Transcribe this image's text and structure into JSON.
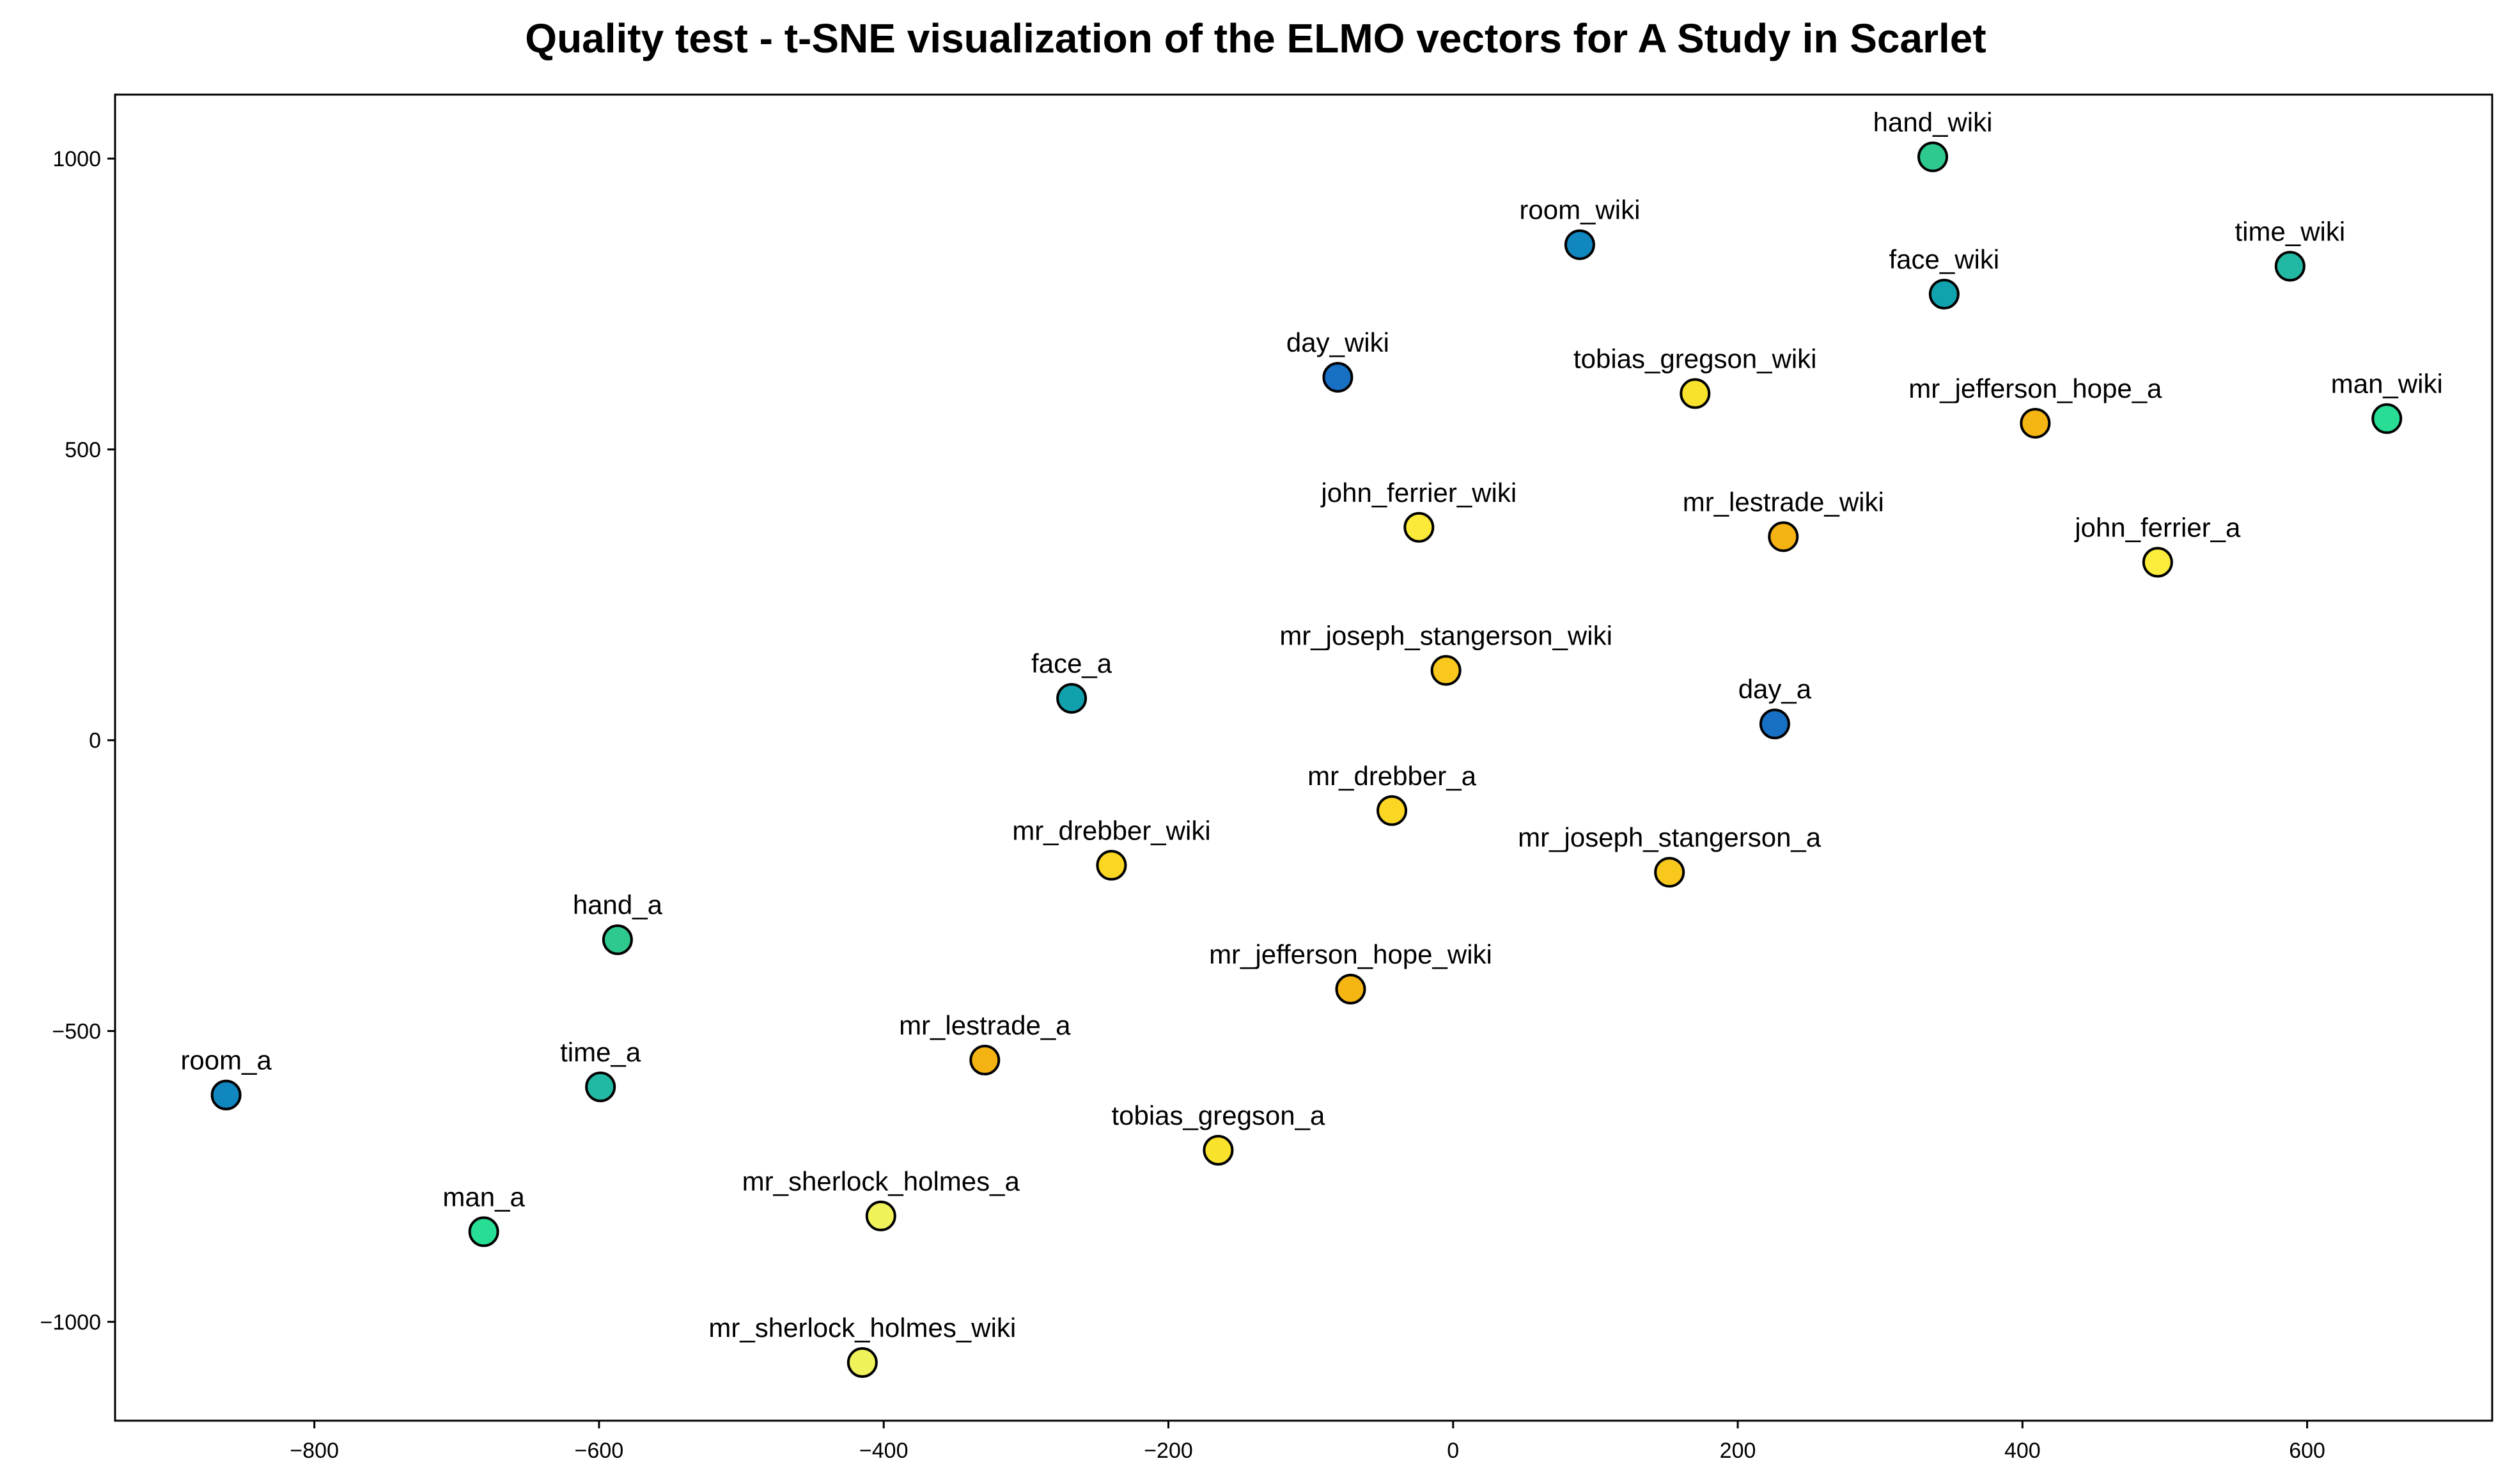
{
  "chart_data": {
    "type": "scatter",
    "title": "Quality test - t-SNE visualization of the ELMO vectors for A Study in Scarlet",
    "xlabel": "",
    "ylabel": "",
    "xlim": [
      -940,
      730
    ],
    "ylim": [
      -1170,
      1110
    ],
    "xticks": [
      -800,
      -600,
      -400,
      -200,
      0,
      200,
      400,
      600
    ],
    "yticks": [
      -1000,
      -500,
      0,
      500,
      1000
    ],
    "grid": false,
    "points": [
      {
        "label": "hand_wiki",
        "x": 337,
        "y": 1003,
        "color": "#2ec98e"
      },
      {
        "label": "room_wiki",
        "x": 89,
        "y": 852,
        "color": "#1187bf"
      },
      {
        "label": "time_wiki",
        "x": 588,
        "y": 815,
        "color": "#22b9a4"
      },
      {
        "label": "face_wiki",
        "x": 345,
        "y": 767,
        "color": "#11a3ad"
      },
      {
        "label": "day_wiki",
        "x": -81,
        "y": 624,
        "color": "#1770c4"
      },
      {
        "label": "tobias_gregson_wiki",
        "x": 170,
        "y": 596,
        "color": "#f9e22b"
      },
      {
        "label": "mr_jefferson_hope_a",
        "x": 409,
        "y": 545,
        "color": "#f5b513"
      },
      {
        "label": "man_wiki",
        "x": 656,
        "y": 553,
        "color": "#27de94"
      },
      {
        "label": "john_ferrier_wiki",
        "x": -24,
        "y": 366,
        "color": "#fbea3a"
      },
      {
        "label": "mr_lestrade_wiki",
        "x": 232,
        "y": 350,
        "color": "#f5b313"
      },
      {
        "label": "john_ferrier_a",
        "x": 495,
        "y": 306,
        "color": "#fcec3c"
      },
      {
        "label": "mr_joseph_stangerson_wiki",
        "x": -5,
        "y": 120,
        "color": "#f8c81c"
      },
      {
        "label": "face_a",
        "x": -268,
        "y": 72,
        "color": "#11a1ad"
      },
      {
        "label": "day_a",
        "x": 226,
        "y": 28,
        "color": "#1770c4"
      },
      {
        "label": "mr_drebber_a",
        "x": -43,
        "y": -121,
        "color": "#fbd723"
      },
      {
        "label": "mr_drebber_wiki",
        "x": -240,
        "y": -215,
        "color": "#fbd723"
      },
      {
        "label": "mr_joseph_stangerson_a",
        "x": 152,
        "y": -227,
        "color": "#f8c81c"
      },
      {
        "label": "hand_a",
        "x": -587,
        "y": -343,
        "color": "#2ec98e"
      },
      {
        "label": "mr_jefferson_hope_wiki",
        "x": -72,
        "y": -428,
        "color": "#f5b513"
      },
      {
        "label": "mr_lestrade_a",
        "x": -329,
        "y": -550,
        "color": "#f5b313"
      },
      {
        "label": "room_a",
        "x": -862,
        "y": -610,
        "color": "#1187bf"
      },
      {
        "label": "time_a",
        "x": -599,
        "y": -596,
        "color": "#22b9a4"
      },
      {
        "label": "tobias_gregson_a",
        "x": -165,
        "y": -705,
        "color": "#f9e22b"
      },
      {
        "label": "mr_sherlock_holmes_a",
        "x": -402,
        "y": -818,
        "color": "#eff25a"
      },
      {
        "label": "man_a",
        "x": -681,
        "y": -845,
        "color": "#27de94"
      },
      {
        "label": "mr_sherlock_holmes_wiki",
        "x": -415,
        "y": -1070,
        "color": "#eff25a"
      }
    ]
  }
}
